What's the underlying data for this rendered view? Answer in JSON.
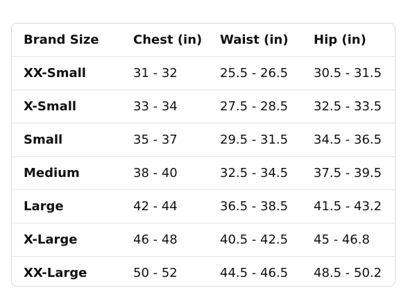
{
  "table": {
    "headers": [
      "Brand Size",
      "Chest (in)",
      "Waist (in)",
      "Hip (in)"
    ],
    "rows": [
      [
        "XX-Small",
        "31 - 32",
        "25.5 - 26.5",
        "30.5 - 31.5"
      ],
      [
        "X-Small",
        "33 - 34",
        "27.5 - 28.5",
        "32.5 - 33.5"
      ],
      [
        "Small",
        "35 - 37",
        "29.5 - 31.5",
        "34.5 - 36.5"
      ],
      [
        "Medium",
        "38 - 40",
        "32.5 - 34.5",
        "37.5 - 39.5"
      ],
      [
        "Large",
        "42 - 44",
        "36.5 - 38.5",
        "41.5 - 43.2"
      ],
      [
        "X-Large",
        "46 - 48",
        "40.5 - 42.5",
        "45 - 46.8"
      ],
      [
        "XX-Large",
        "50 - 52",
        "44.5 - 46.5",
        "48.5 - 50.2"
      ]
    ]
  }
}
